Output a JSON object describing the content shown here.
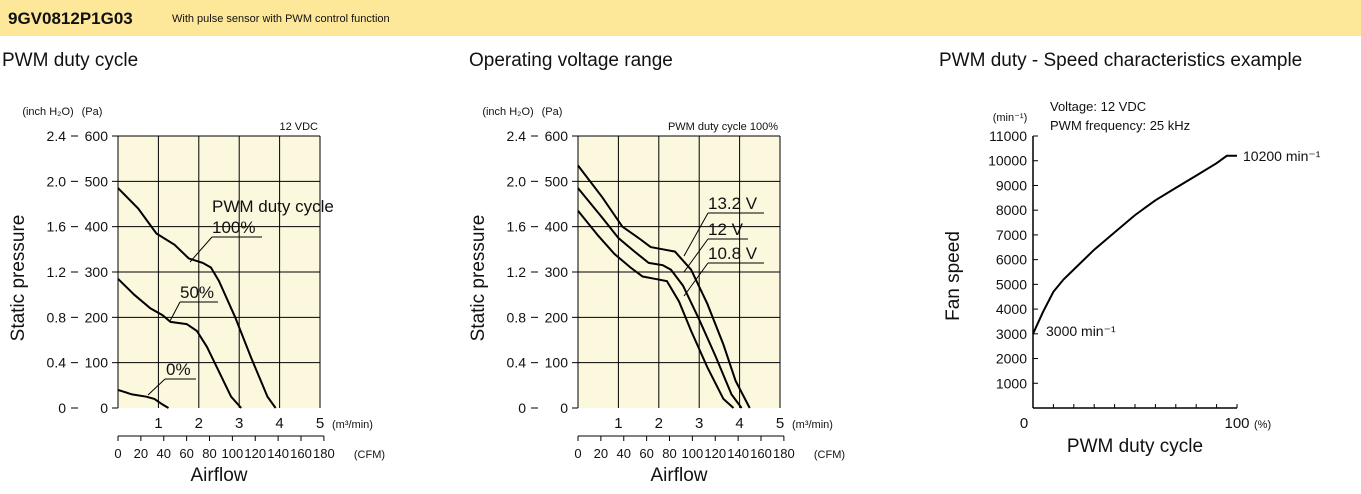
{
  "header": {
    "model": "9GV0812P1G03",
    "description": "With pulse sensor with PWM control function"
  },
  "colors": {
    "header_bg": "#fde89a",
    "plot_bg": "#fcf8de",
    "curve": "#000000"
  },
  "chart_data": [
    {
      "type": "line",
      "title": "PWM duty cycle",
      "note": "12 VDC",
      "xlabel": "Airflow",
      "ylabel": "Static pressure",
      "x_unit_primary": "(m³/min)",
      "x_unit_secondary": "(CFM)",
      "y_unit_primary": "(Pa)",
      "y_unit_secondary": "(inch H₂O)",
      "xlim": [
        0,
        5
      ],
      "ylim": [
        0,
        600
      ],
      "x_ticks": [
        "1",
        "2",
        "3",
        "4",
        "5"
      ],
      "cfm_ticks": [
        "0",
        "20",
        "40",
        "60",
        "80",
        "100",
        "120",
        "140",
        "160",
        "180"
      ],
      "y_ticks_pa": [
        "0",
        "100",
        "200",
        "300",
        "400",
        "500",
        "600"
      ],
      "y_ticks_inch": [
        "0",
        "0.4",
        "0.8",
        "1.2",
        "1.6",
        "2.0",
        "2.4"
      ],
      "legend_title": "PWM duty cycle",
      "series": [
        {
          "name": "100%",
          "x": [
            0,
            0.5,
            0.95,
            1.4,
            1.75,
            2.1,
            2.3,
            2.5,
            2.9,
            3.3,
            3.7,
            3.9
          ],
          "y": [
            485,
            440,
            385,
            360,
            330,
            320,
            310,
            280,
            200,
            110,
            25,
            0
          ]
        },
        {
          "name": "50%",
          "x": [
            0,
            0.4,
            0.8,
            1.1,
            1.3,
            1.7,
            1.95,
            2.2,
            2.5,
            2.8,
            3.05
          ],
          "y": [
            285,
            250,
            220,
            205,
            190,
            185,
            170,
            135,
            80,
            25,
            0
          ]
        },
        {
          "name": "0%",
          "x": [
            0,
            0.35,
            0.7,
            0.9,
            1.1,
            1.25
          ],
          "y": [
            40,
            30,
            25,
            20,
            8,
            0
          ]
        }
      ]
    },
    {
      "type": "line",
      "title": "Operating voltage range",
      "note": "PWM duty cycle 100%",
      "xlabel": "Airflow",
      "ylabel": "Static pressure",
      "x_unit_primary": "(m³/min)",
      "x_unit_secondary": "(CFM)",
      "y_unit_primary": "(Pa)",
      "y_unit_secondary": "(inch H₂O)",
      "xlim": [
        0,
        5
      ],
      "ylim": [
        0,
        600
      ],
      "x_ticks": [
        "1",
        "2",
        "3",
        "4",
        "5"
      ],
      "cfm_ticks": [
        "0",
        "20",
        "40",
        "60",
        "80",
        "100",
        "120",
        "140",
        "160",
        "180"
      ],
      "y_ticks_pa": [
        "0",
        "100",
        "200",
        "300",
        "400",
        "500",
        "600"
      ],
      "y_ticks_inch": [
        "0",
        "0.4",
        "0.8",
        "1.2",
        "1.6",
        "2.0",
        "2.4"
      ],
      "series": [
        {
          "name": "13.2 V",
          "x": [
            0,
            0.6,
            1.1,
            1.5,
            1.8,
            2.1,
            2.4,
            2.8,
            3.2,
            3.6,
            3.9,
            4.25
          ],
          "y": [
            535,
            465,
            400,
            375,
            355,
            350,
            345,
            305,
            230,
            140,
            60,
            0
          ]
        },
        {
          "name": "12 V",
          "x": [
            0,
            0.6,
            1.0,
            1.4,
            1.75,
            2.1,
            2.3,
            2.6,
            3.0,
            3.4,
            3.8,
            4.05
          ],
          "y": [
            485,
            420,
            375,
            345,
            320,
            315,
            305,
            270,
            195,
            115,
            30,
            0
          ]
        },
        {
          "name": "10.8 V",
          "x": [
            0,
            0.5,
            0.9,
            1.3,
            1.6,
            1.9,
            2.2,
            2.5,
            2.8,
            3.2,
            3.6,
            3.85
          ],
          "y": [
            435,
            380,
            340,
            310,
            290,
            285,
            280,
            235,
            170,
            90,
            20,
            0
          ]
        }
      ]
    },
    {
      "type": "line",
      "title": "PWM duty - Speed characteristics example",
      "xlabel": "PWM duty cycle",
      "ylabel": "Fan speed",
      "x_unit": "(%)",
      "y_unit": "(min⁻¹)",
      "voltage_label": "Voltage: 12 VDC",
      "frequency_label": "PWM frequency: 25 kHz",
      "xlim": [
        0,
        100
      ],
      "ylim": [
        0,
        11000
      ],
      "x_ticks": [
        "0",
        "100"
      ],
      "y_ticks": [
        "1000",
        "2000",
        "3000",
        "4000",
        "5000",
        "6000",
        "7000",
        "8000",
        "9000",
        "10000",
        "11000"
      ],
      "series": [
        {
          "x": [
            0,
            5,
            10,
            15,
            20,
            30,
            40,
            50,
            60,
            70,
            80,
            90,
            95,
            100
          ],
          "y": [
            3000,
            3900,
            4700,
            5200,
            5600,
            6400,
            7100,
            7800,
            8400,
            8900,
            9400,
            9900,
            10200,
            10200
          ]
        }
      ],
      "annotations": [
        {
          "text": "3000 min⁻¹",
          "x": 0,
          "y": 3000
        },
        {
          "text": "10200 min⁻¹",
          "x": 100,
          "y": 10200
        }
      ]
    }
  ]
}
